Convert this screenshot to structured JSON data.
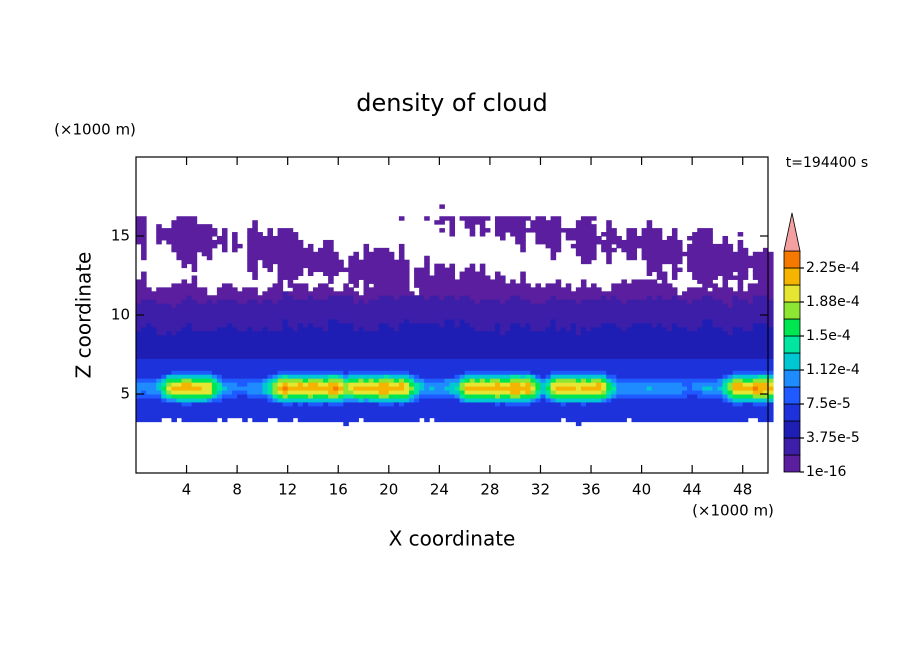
{
  "chart_data": {
    "type": "contour",
    "title": "density of cloud",
    "x_label": "X coordinate",
    "y_label": "Z coordinate",
    "x_unit": "(×1000 m)",
    "y_unit": "(×1000 m)",
    "time_label": "t=194400 s",
    "xlim": [
      0,
      50
    ],
    "ylim": [
      0,
      20
    ],
    "xticks": [
      4,
      8,
      12,
      16,
      20,
      24,
      28,
      32,
      36,
      40,
      44,
      48
    ],
    "yticks": [
      5,
      10,
      15
    ],
    "colorbar": {
      "ticks": [
        1e-16,
        {
          "value": 3.75e-05,
          "label": "3.75e-5"
        },
        {
          "value": 7.5e-05,
          "label": "7.5e-5"
        },
        {
          "value": 0.000112,
          "label": "1.12e-4"
        },
        {
          "value": 0.00015,
          "label": "1.5e-4"
        },
        {
          "value": 0.000188,
          "label": "1.88e-4"
        },
        {
          "value": 0.000225,
          "label": "2.25e-4"
        }
      ],
      "colors": [
        "#5a1e9e",
        "#3c1ea8",
        "#1e1eb4",
        "#1e32dc",
        "#1e5aff",
        "#1e8cff",
        "#00c8d2",
        "#00e6a0",
        "#00e650",
        "#8ce632",
        "#e6e632",
        "#f5b400",
        "#f57800"
      ],
      "extend_color": "#f5a0a0"
    }
  }
}
